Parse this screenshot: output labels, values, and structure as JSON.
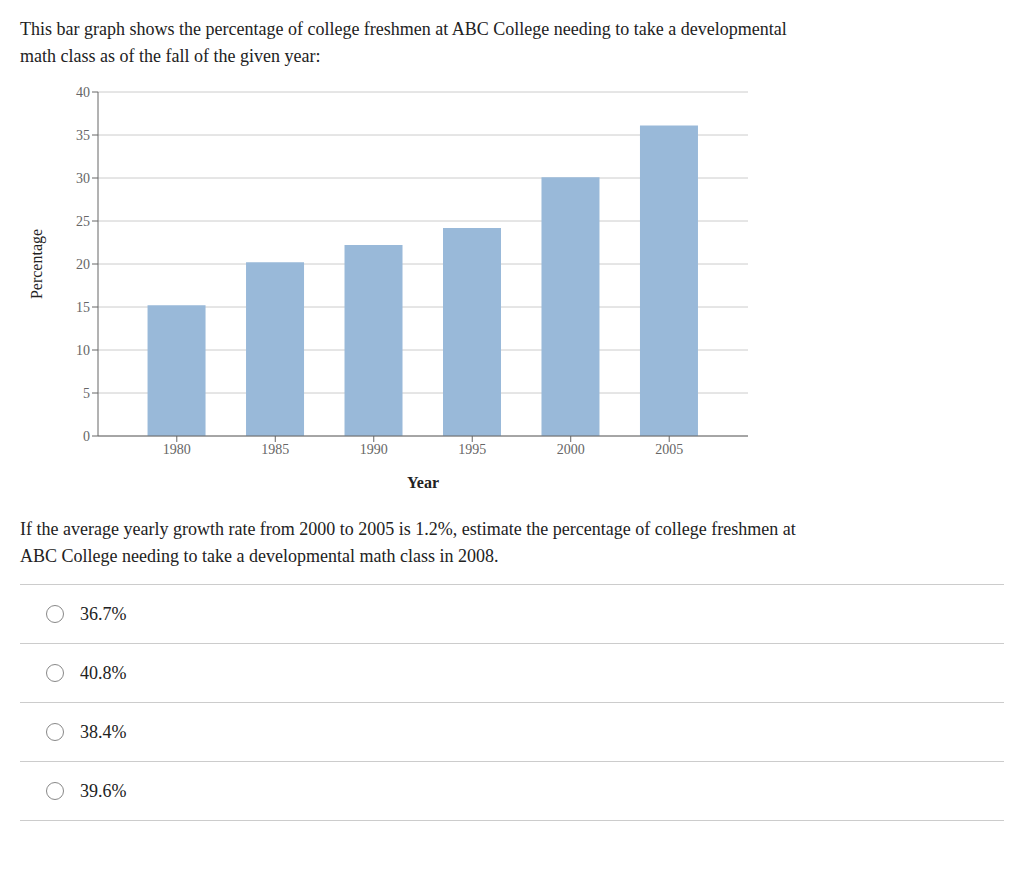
{
  "chart_data": {
    "type": "bar",
    "title": "This bar graph shows the percentage of college freshmen at ABC College needing to take a developmental\nmath class as of the fall of the given year:",
    "x": [
      1980,
      1985,
      1990,
      1995,
      2000,
      2005
    ],
    "values": [
      15.2,
      20.2,
      22.2,
      24.2,
      30.1,
      36.1
    ],
    "color": "#99b9d9",
    "xlabel": "Year",
    "ylabel": "Percentage",
    "xlim": [
      1976,
      2009
    ],
    "xticks": [
      1980,
      1985,
      1990,
      1995,
      2000,
      2005
    ],
    "ylim": [
      0,
      40
    ],
    "yticks": [
      0,
      5,
      10,
      15,
      20,
      25,
      30,
      35,
      40
    ],
    "grid": true,
    "annotations": [
      "If the average yearly growth rate from 2000 to 2005 is 1.2%, estimate the percentage of college freshmen at\nABC College needing to take a developmental math class in 2008.",
      "36.7%",
      "40.8%",
      "38.4%",
      "39.6%"
    ]
  }
}
